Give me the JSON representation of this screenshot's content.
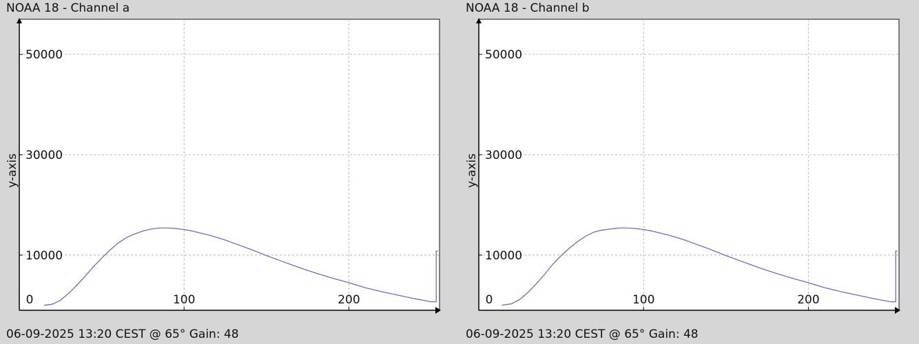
{
  "chart_data": [
    {
      "type": "line",
      "title": "NOAA 18 - Channel a",
      "ylabel": "y-axis",
      "footer": "06-09-2025 13:20 CEST @ 65° Gain: 48",
      "xlim": [
        0,
        255
      ],
      "ylim": [
        -1000,
        57000
      ],
      "x_ticks": [
        {
          "v": 0,
          "label": "0"
        },
        {
          "v": 100,
          "label": "100"
        },
        {
          "v": 200,
          "label": "200"
        }
      ],
      "y_ticks": [
        {
          "v": 50000,
          "label": "50000"
        },
        {
          "v": 30000,
          "label": "30000"
        },
        {
          "v": 10000,
          "label": "10000"
        }
      ],
      "x_grid": [
        100,
        200
      ],
      "y_grid": [
        50000,
        30000,
        10000
      ],
      "grid": true,
      "line_color": "#6b6bc8",
      "series": [
        {
          "x": [
            15,
            20,
            25,
            30,
            35,
            40,
            45,
            50,
            55,
            60,
            65,
            70,
            75,
            80,
            85,
            90,
            95,
            100,
            105,
            110,
            115,
            120,
            125,
            130,
            140,
            150,
            160,
            170,
            180,
            190,
            200,
            210,
            220,
            230,
            240,
            250,
            253,
            253,
            254
          ],
          "y": [
            0,
            200,
            1000,
            2400,
            4000,
            5800,
            7700,
            9400,
            11000,
            12400,
            13500,
            14200,
            14800,
            15200,
            15400,
            15400,
            15300,
            15100,
            14800,
            14400,
            14000,
            13500,
            13000,
            12400,
            11200,
            9900,
            8700,
            7500,
            6400,
            5400,
            4500,
            3500,
            2700,
            2000,
            1300,
            700,
            700,
            10800,
            10800
          ]
        }
      ]
    },
    {
      "type": "line",
      "title": "NOAA 18 - Channel b",
      "ylabel": "y-axis",
      "footer": "06-09-2025 13:20 CEST @ 65° Gain: 48",
      "xlim": [
        0,
        255
      ],
      "ylim": [
        -1000,
        57000
      ],
      "x_ticks": [
        {
          "v": 0,
          "label": "0"
        },
        {
          "v": 100,
          "label": "100"
        },
        {
          "v": 200,
          "label": "200"
        }
      ],
      "y_ticks": [
        {
          "v": 50000,
          "label": "50000"
        },
        {
          "v": 30000,
          "label": "30000"
        },
        {
          "v": 10000,
          "label": "10000"
        }
      ],
      "x_grid": [
        100,
        200
      ],
      "y_grid": [
        50000,
        30000,
        10000
      ],
      "grid": true,
      "line_color": "#6b6bc8",
      "series": [
        {
          "x": [
            14,
            20,
            25,
            30,
            35,
            40,
            45,
            50,
            55,
            60,
            65,
            70,
            75,
            80,
            85,
            90,
            95,
            100,
            105,
            110,
            115,
            120,
            125,
            130,
            140,
            150,
            160,
            170,
            180,
            190,
            200,
            210,
            220,
            230,
            240,
            250,
            253,
            253,
            254
          ],
          "y": [
            0,
            300,
            1200,
            2600,
            4300,
            6200,
            8200,
            9900,
            11400,
            12700,
            13800,
            14600,
            15000,
            15200,
            15400,
            15400,
            15300,
            15100,
            14800,
            14400,
            14000,
            13500,
            13000,
            12400,
            11200,
            9900,
            8700,
            7500,
            6400,
            5400,
            4500,
            3500,
            2700,
            2000,
            1300,
            700,
            700,
            10800,
            10800
          ]
        }
      ]
    }
  ]
}
